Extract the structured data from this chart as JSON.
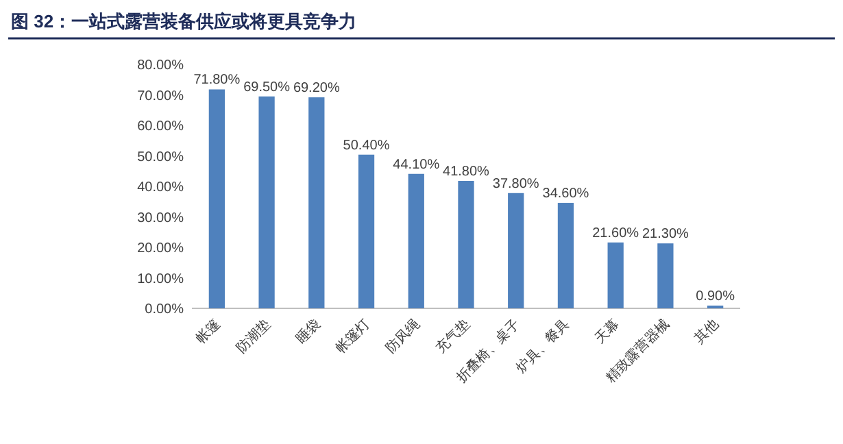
{
  "chart_data": {
    "type": "bar",
    "title": "图 32：一站式露营装备供应或将更具竞争力",
    "categories": [
      "帐篷",
      "防潮垫",
      "睡袋",
      "帐篷灯",
      "防风绳",
      "充气垫",
      "折叠椅、桌子",
      "炉具、餐具",
      "天幕",
      "精致露营器械",
      "其他"
    ],
    "values": [
      71.8,
      69.5,
      69.2,
      50.4,
      44.1,
      41.8,
      37.8,
      34.6,
      21.6,
      21.3,
      0.9
    ],
    "value_labels": [
      "71.80%",
      "69.50%",
      "69.20%",
      "50.40%",
      "44.10%",
      "41.80%",
      "37.80%",
      "34.60%",
      "21.60%",
      "21.30%",
      "0.90%"
    ],
    "color": "#4f81bd",
    "ylim": [
      0,
      80
    ],
    "yticks": [
      {
        "value": 0,
        "label": "0.00%"
      },
      {
        "value": 10,
        "label": "10.00%"
      },
      {
        "value": 20,
        "label": "20.00%"
      },
      {
        "value": 30,
        "label": "30.00%"
      },
      {
        "value": 40,
        "label": "40.00%"
      },
      {
        "value": 50,
        "label": "50.00%"
      },
      {
        "value": 60,
        "label": "60.00%"
      },
      {
        "value": 70,
        "label": "70.00%"
      },
      {
        "value": 80,
        "label": "80.00%"
      }
    ]
  }
}
